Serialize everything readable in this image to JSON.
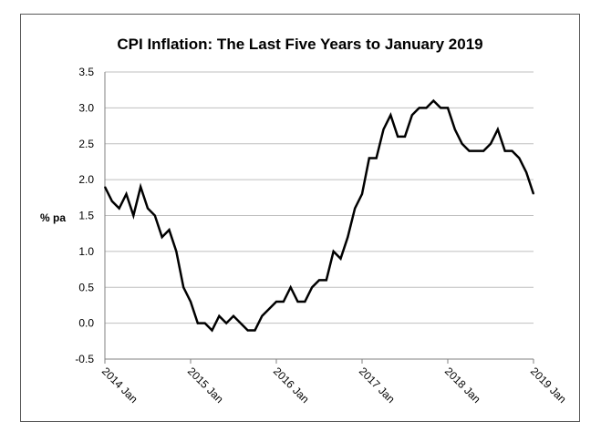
{
  "chart_data": {
    "type": "line",
    "title": "CPI Inflation: The Last Five Years to January 2019",
    "xlabel": "",
    "ylabel": "% pa",
    "ylim": [
      -0.5,
      3.5
    ],
    "yticks": [
      "3.5",
      "3.0",
      "2.5",
      "2.0",
      "1.5",
      "1.0",
      "0.5",
      "0.0",
      "-0.5"
    ],
    "xticks": [
      "2014 Jan",
      "2015 Jan",
      "2016 Jan",
      "2017 Jan",
      "2018 Jan",
      "2019 Jan"
    ],
    "grid": true,
    "legend": "none",
    "line_color": "#000000",
    "series": [
      {
        "x": [
          "2014-01",
          "2014-02",
          "2014-03",
          "2014-04",
          "2014-05",
          "2014-06",
          "2014-07",
          "2014-08",
          "2014-09",
          "2014-10",
          "2014-11",
          "2014-12",
          "2015-01",
          "2015-02",
          "2015-03",
          "2015-04",
          "2015-05",
          "2015-06",
          "2015-07",
          "2015-08",
          "2015-09",
          "2015-10",
          "2015-11",
          "2015-12",
          "2016-01",
          "2016-02",
          "2016-03",
          "2016-04",
          "2016-05",
          "2016-06",
          "2016-07",
          "2016-08",
          "2016-09",
          "2016-10",
          "2016-11",
          "2016-12",
          "2017-01",
          "2017-02",
          "2017-03",
          "2017-04",
          "2017-05",
          "2017-06",
          "2017-07",
          "2017-08",
          "2017-09",
          "2017-10",
          "2017-11",
          "2017-12",
          "2018-01",
          "2018-02",
          "2018-03",
          "2018-04",
          "2018-05",
          "2018-06",
          "2018-07",
          "2018-08",
          "2018-09",
          "2018-10",
          "2018-11",
          "2018-12",
          "2019-01"
        ],
        "values": [
          1.9,
          1.7,
          1.6,
          1.8,
          1.5,
          1.9,
          1.6,
          1.5,
          1.2,
          1.3,
          1.0,
          0.5,
          0.3,
          0.0,
          0.0,
          -0.1,
          0.1,
          0.0,
          0.1,
          0.0,
          -0.1,
          -0.1,
          0.1,
          0.2,
          0.3,
          0.3,
          0.5,
          0.3,
          0.3,
          0.5,
          0.6,
          0.6,
          1.0,
          0.9,
          1.2,
          1.6,
          1.8,
          2.3,
          2.3,
          2.7,
          2.9,
          2.6,
          2.6,
          2.9,
          3.0,
          3.0,
          3.1,
          3.0,
          3.0,
          2.7,
          2.5,
          2.4,
          2.4,
          2.4,
          2.5,
          2.7,
          2.4,
          2.4,
          2.3,
          2.1,
          1.8
        ]
      }
    ]
  }
}
